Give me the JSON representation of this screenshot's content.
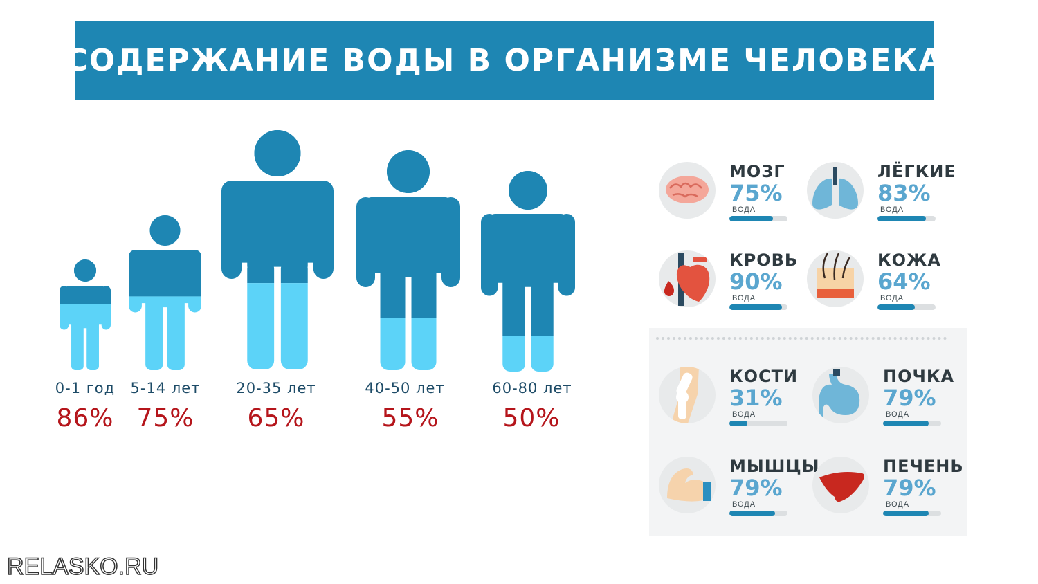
{
  "title": "СОДЕРЖАНИЕ ВОДЫ В ОРГАНИЗМЕ ЧЕЛОВЕКА",
  "colors": {
    "band": "#1e86b3",
    "body_dark": "#1e86b3",
    "body_light": "#5cd3f8",
    "percent": "#b5151b",
    "organ_value": "#5aa6cf"
  },
  "age_groups": [
    {
      "age": "0-1 год",
      "percent": "86%",
      "water": 0.86
    },
    {
      "age": "5-14 лет",
      "percent": "75%",
      "water": 0.75
    },
    {
      "age": "20-35 лет",
      "percent": "65%",
      "water": 0.65
    },
    {
      "age": "40-50 лет",
      "percent": "55%",
      "water": 0.55
    },
    {
      "age": "60-80 лет",
      "percent": "50%",
      "water": 0.5
    }
  ],
  "organs": [
    {
      "name": "МОЗГ",
      "value": "75%",
      "label": "ВОДА",
      "level": 0.75,
      "icon": "brain-icon"
    },
    {
      "name": "ЛЁГКИЕ",
      "value": "83%",
      "label": "ВОДА",
      "level": 0.83,
      "icon": "lungs-icon"
    },
    {
      "name": "КРОВЬ",
      "value": "90%",
      "label": "ВОДА",
      "level": 0.9,
      "icon": "heart-blood-icon"
    },
    {
      "name": "КОЖА",
      "value": "64%",
      "label": "ВОДА",
      "level": 0.64,
      "icon": "skin-icon"
    },
    {
      "name": "КОСТИ",
      "value": "31%",
      "label": "ВОДА",
      "level": 0.31,
      "icon": "bone-joint-icon"
    },
    {
      "name": "ПОЧКА",
      "value": "79%",
      "label": "ВОДА",
      "level": 0.79,
      "icon": "kidney-icon"
    },
    {
      "name": "МЫШЦЫ",
      "value": "79%",
      "label": "ВОДА",
      "level": 0.79,
      "icon": "muscle-arm-icon"
    },
    {
      "name": "ПЕЧЕНЬ",
      "value": "79%",
      "label": "ВОДА",
      "level": 0.79,
      "icon": "liver-icon"
    }
  ],
  "watermark": "RELASKO.RU"
}
